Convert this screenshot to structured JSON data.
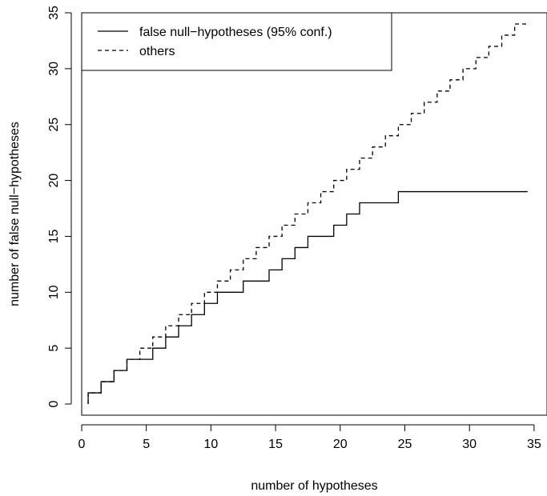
{
  "chart_data": {
    "type": "line",
    "title": "",
    "xlabel": "number of hypotheses",
    "ylabel": "number of false null−hypotheses",
    "xlim": [
      0,
      36
    ],
    "ylim": [
      -1,
      35
    ],
    "xticks": [
      0,
      5,
      10,
      15,
      20,
      25,
      30,
      35
    ],
    "yticks": [
      0,
      5,
      10,
      15,
      20,
      25,
      30,
      35
    ],
    "grid": false,
    "legend_position": "top-left",
    "series": [
      {
        "name": "false null−hypotheses (95% conf.)",
        "line_style": "solid",
        "color": "#000000",
        "x": [
          0.5,
          1.5,
          2.5,
          3.5,
          4.5,
          5.5,
          6.5,
          7.5,
          8.5,
          9.5,
          10.5,
          11.5,
          12.5,
          13.5,
          14.5,
          15.5,
          16.5,
          17.5,
          18.5,
          19.5,
          20.5,
          21.5,
          22.5,
          23.5,
          24.5,
          25.5,
          26.5,
          27.5,
          28.5,
          29.5,
          30.5,
          31.5,
          32.5,
          33.5,
          34.5
        ],
        "y": [
          1,
          2,
          3,
          4,
          4,
          5,
          6,
          7,
          8,
          9,
          10,
          10,
          11,
          11,
          12,
          13,
          14,
          15,
          15,
          16,
          17,
          18,
          18,
          18,
          19,
          19,
          19,
          19,
          19,
          19,
          19,
          19,
          19,
          19,
          19
        ]
      },
      {
        "name": "others",
        "line_style": "dashed",
        "color": "#000000",
        "x": [
          0.5,
          1.5,
          2.5,
          3.5,
          4.5,
          5.5,
          6.5,
          7.5,
          8.5,
          9.5,
          10.5,
          11.5,
          12.5,
          13.5,
          14.5,
          15.5,
          16.5,
          17.5,
          18.5,
          19.5,
          20.5,
          21.5,
          22.5,
          23.5,
          24.5,
          25.5,
          26.5,
          27.5,
          28.5,
          29.5,
          30.5,
          31.5,
          32.5,
          33.5,
          34.5
        ],
        "y": [
          1,
          2,
          3,
          4,
          5,
          6,
          7,
          8,
          9,
          10,
          11,
          12,
          13,
          14,
          15,
          16,
          17,
          18,
          19,
          20,
          21,
          22,
          23,
          24,
          25,
          26,
          27,
          28,
          29,
          30,
          31,
          32,
          33,
          34,
          34
        ]
      }
    ]
  }
}
